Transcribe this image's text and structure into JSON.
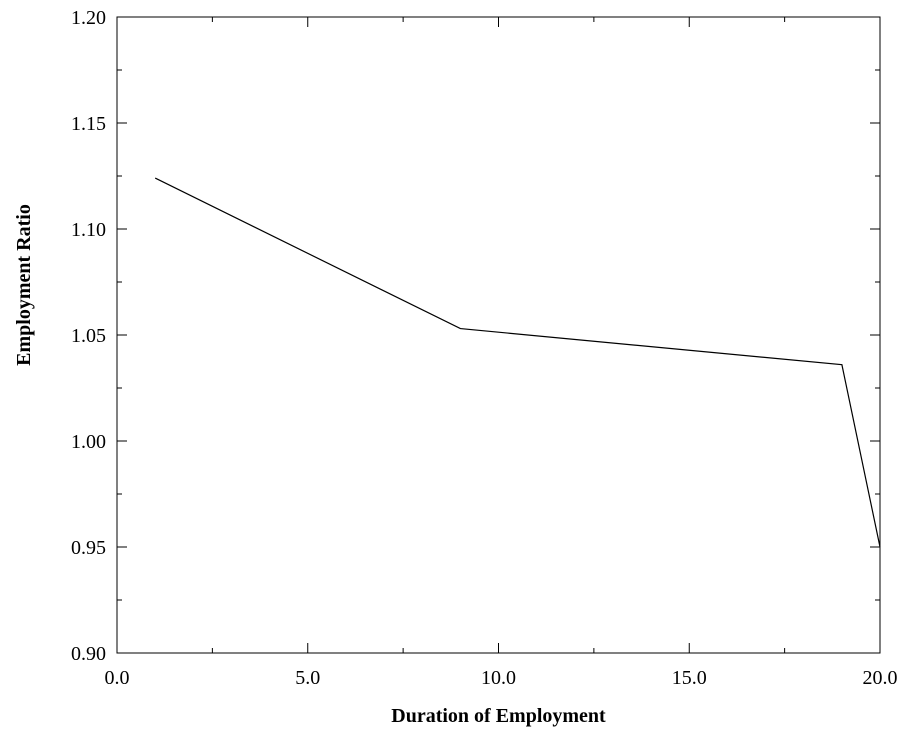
{
  "chart_data": {
    "type": "line",
    "title": "",
    "xlabel": "Duration of Employment",
    "ylabel": "Employment Ratio",
    "xlim": [
      0.0,
      20.0
    ],
    "ylim": [
      0.9,
      1.2
    ],
    "x_ticks": [
      0.0,
      5.0,
      10.0,
      15.0,
      20.0
    ],
    "x_tick_labels": [
      "0.0",
      "5.0",
      "10.0",
      "15.0",
      "20.0"
    ],
    "y_ticks": [
      0.9,
      0.95,
      1.0,
      1.05,
      1.1,
      1.15,
      1.2
    ],
    "y_tick_labels": [
      "0.90",
      "0.95",
      "1.00",
      "1.05",
      "1.10",
      "1.15",
      "1.20"
    ],
    "grid": false,
    "legend": "none",
    "series": [
      {
        "color": "#000000",
        "x": [
          1.0,
          9.0,
          19.0,
          20.0
        ],
        "y": [
          1.124,
          1.053,
          1.036,
          0.95
        ]
      }
    ]
  }
}
